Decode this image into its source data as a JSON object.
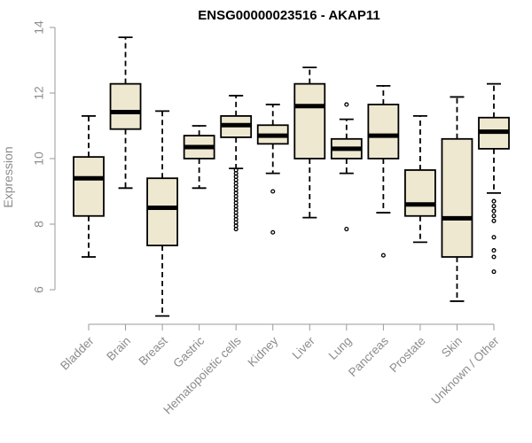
{
  "chart_data": {
    "type": "boxplot",
    "title": "ENSG00000023516 - AKAP11",
    "xlabel": "",
    "ylabel": "Expression",
    "ylim": [
      5.0,
      14.0
    ],
    "yticks": [
      6,
      8,
      10,
      12,
      14
    ],
    "box_fill": "#efe8d0",
    "box_stroke": "#000000",
    "axis_color": "#9a9a9a",
    "label_color": "#8c8c8c",
    "categories": [
      "Bladder",
      "Brain",
      "Breast",
      "Gastric",
      "Hematopoietic cells",
      "Kidney",
      "Liver",
      "Lung",
      "Pancreas",
      "Prostate",
      "Skin",
      "Unknown / Other"
    ],
    "boxes": [
      {
        "min": 7.0,
        "q1": 8.25,
        "median": 9.4,
        "q3": 10.05,
        "max": 11.3,
        "outliers": []
      },
      {
        "min": 9.1,
        "q1": 10.9,
        "median": 11.42,
        "q3": 12.28,
        "max": 13.7,
        "outliers": []
      },
      {
        "min": 5.2,
        "q1": 7.35,
        "median": 8.5,
        "q3": 9.4,
        "max": 11.45,
        "outliers": []
      },
      {
        "min": 9.1,
        "q1": 10.0,
        "median": 10.35,
        "q3": 10.7,
        "max": 11.0,
        "outliers": []
      },
      {
        "min": 9.7,
        "q1": 10.65,
        "median": 11.02,
        "q3": 11.3,
        "max": 11.92,
        "outliers": [
          9.65,
          9.55,
          9.45,
          9.35,
          9.25,
          9.15,
          9.05,
          8.95,
          8.85,
          8.75,
          8.65,
          8.55,
          8.45,
          8.35,
          8.25,
          8.15,
          8.05,
          7.95,
          7.85
        ]
      },
      {
        "min": 9.55,
        "q1": 10.45,
        "median": 10.7,
        "q3": 11.02,
        "max": 11.65,
        "outliers": [
          9.0,
          7.75
        ]
      },
      {
        "min": 8.2,
        "q1": 10.0,
        "median": 11.6,
        "q3": 12.28,
        "max": 12.78,
        "outliers": []
      },
      {
        "min": 9.55,
        "q1": 10.0,
        "median": 10.3,
        "q3": 10.6,
        "max": 11.2,
        "outliers": [
          11.65,
          7.85
        ]
      },
      {
        "min": 8.35,
        "q1": 10.0,
        "median": 10.7,
        "q3": 11.65,
        "max": 12.22,
        "outliers": [
          7.05
        ]
      },
      {
        "min": 7.45,
        "q1": 8.25,
        "median": 8.6,
        "q3": 9.65,
        "max": 11.3,
        "outliers": []
      },
      {
        "min": 5.65,
        "q1": 7.0,
        "median": 8.18,
        "q3": 10.6,
        "max": 11.88,
        "outliers": []
      },
      {
        "min": 8.95,
        "q1": 10.3,
        "median": 10.82,
        "q3": 11.25,
        "max": 12.28,
        "outliers": [
          8.7,
          8.55,
          8.4,
          8.25,
          8.1,
          7.6,
          7.2,
          7.0,
          6.55
        ]
      }
    ]
  }
}
